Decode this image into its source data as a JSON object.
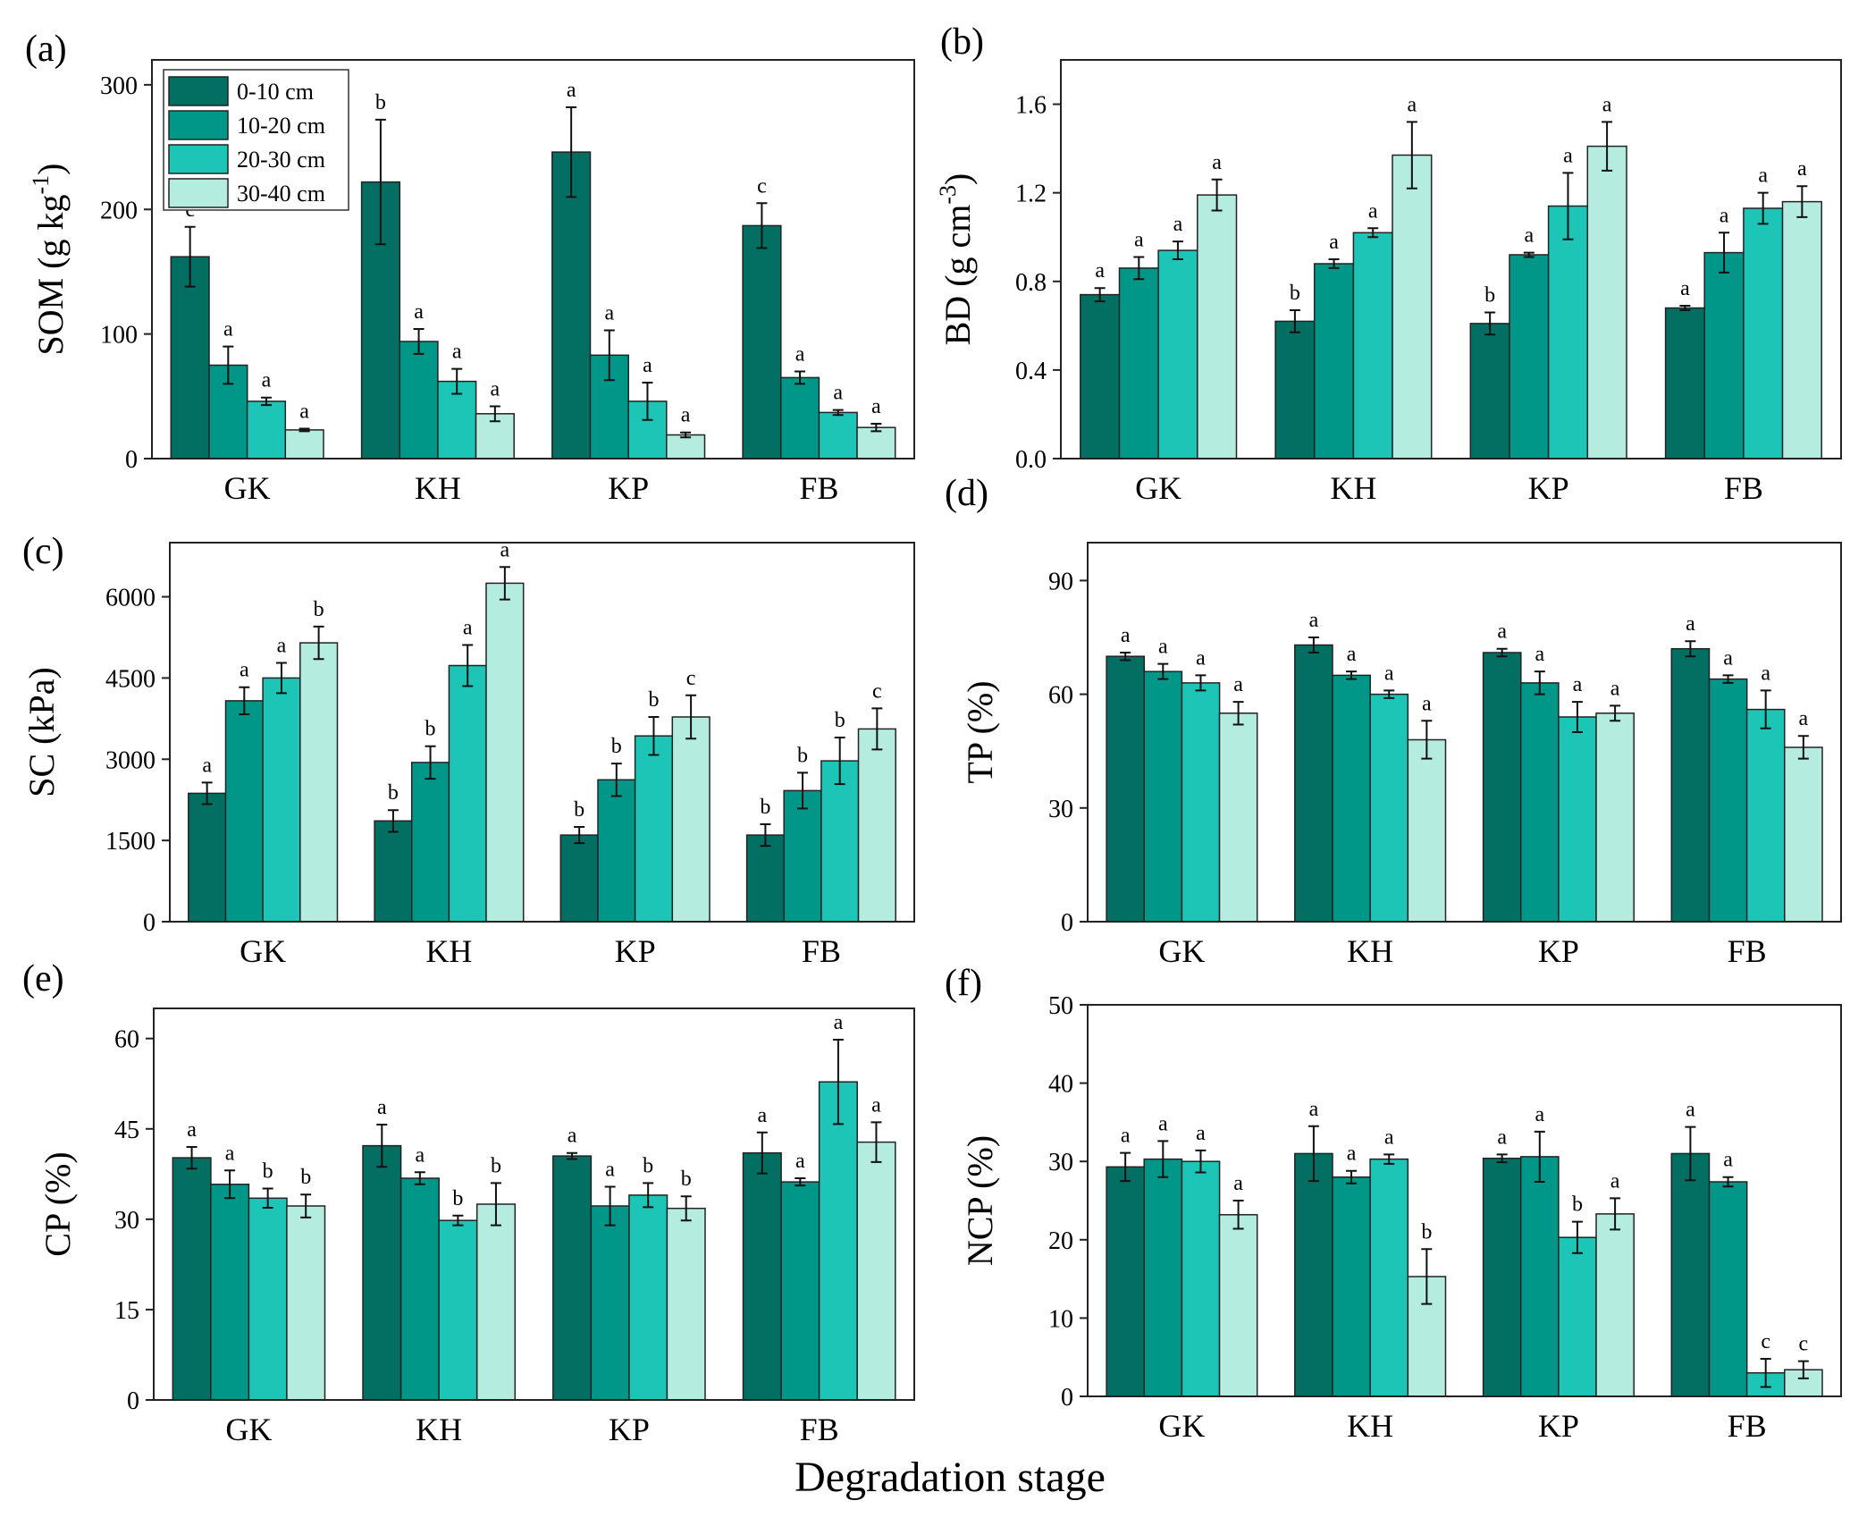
{
  "figure": {
    "x_title": "Degradation stage",
    "categories": [
      "GK",
      "KH",
      "KP",
      "FB"
    ],
    "series_names": [
      "0-10 cm",
      "10-20 cm",
      "20-30 cm",
      "30-40 cm"
    ],
    "series_colors": [
      "#026f62",
      "#009688",
      "#1dc5b6",
      "#b4ede0"
    ]
  },
  "chart_data": [
    {
      "type": "bar",
      "panel_label": "(a)",
      "ylabel_base": "SOM (g kg",
      "ylabel_sup": "-1",
      "ylabel_close": ")",
      "ylim": [
        0,
        320
      ],
      "yticks": [
        0,
        100,
        200,
        300
      ],
      "legend": "top-left",
      "categories": [
        "GK",
        "KH",
        "KP",
        "FB"
      ],
      "series": [
        {
          "name": "0-10 cm",
          "values": [
            162,
            222,
            246,
            187
          ],
          "errors": [
            24,
            50,
            36,
            18
          ],
          "letters": [
            "c",
            "b",
            "a",
            "c"
          ]
        },
        {
          "name": "10-20 cm",
          "values": [
            75,
            94,
            83,
            65
          ],
          "errors": [
            15,
            10,
            20,
            5
          ],
          "letters": [
            "a",
            "a",
            "a",
            "a"
          ]
        },
        {
          "name": "20-30 cm",
          "values": [
            46,
            62,
            46,
            37
          ],
          "errors": [
            3,
            10,
            15,
            2
          ],
          "letters": [
            "a",
            "a",
            "a",
            "a"
          ]
        },
        {
          "name": "30-40 cm",
          "values": [
            23,
            36,
            19,
            25
          ],
          "errors": [
            1,
            6,
            2,
            3
          ],
          "letters": [
            "a",
            "a",
            "a",
            "a"
          ]
        }
      ]
    },
    {
      "type": "bar",
      "panel_label": "(b)",
      "ylabel_base": "BD (g cm",
      "ylabel_sup": "-3",
      "ylabel_close": ")",
      "ylim": [
        0,
        1.8
      ],
      "yticks": [
        0.0,
        0.4,
        0.8,
        1.2,
        1.6
      ],
      "tick_decimals": 1,
      "categories": [
        "GK",
        "KH",
        "KP",
        "FB"
      ],
      "series": [
        {
          "name": "0-10 cm",
          "values": [
            0.74,
            0.62,
            0.61,
            0.68
          ],
          "errors": [
            0.03,
            0.05,
            0.05,
            0.01
          ],
          "letters": [
            "a",
            "b",
            "b",
            "a"
          ]
        },
        {
          "name": "10-20 cm",
          "values": [
            0.86,
            0.88,
            0.92,
            0.93
          ],
          "errors": [
            0.05,
            0.02,
            0.01,
            0.09
          ],
          "letters": [
            "a",
            "a",
            "a",
            "a"
          ]
        },
        {
          "name": "20-30 cm",
          "values": [
            0.94,
            1.02,
            1.14,
            1.13
          ],
          "errors": [
            0.04,
            0.02,
            0.15,
            0.07
          ],
          "letters": [
            "a",
            "a",
            "a",
            "a"
          ]
        },
        {
          "name": "30-40 cm",
          "values": [
            1.19,
            1.37,
            1.41,
            1.16
          ],
          "errors": [
            0.07,
            0.15,
            0.11,
            0.07
          ],
          "letters": [
            "a",
            "a",
            "a",
            "a"
          ]
        }
      ]
    },
    {
      "type": "bar",
      "panel_label": "(c)",
      "ylabel_base": "SC (kPa)",
      "ylim": [
        0,
        7000
      ],
      "yticks": [
        0,
        1500,
        3000,
        4500,
        6000
      ],
      "categories": [
        "GK",
        "KH",
        "KP",
        "FB"
      ],
      "series": [
        {
          "name": "0-10 cm",
          "values": [
            2370,
            1860,
            1600,
            1600
          ],
          "errors": [
            200,
            200,
            150,
            200
          ],
          "letters": [
            "a",
            "b",
            "b",
            "b"
          ]
        },
        {
          "name": "10-20 cm",
          "values": [
            4080,
            2940,
            2620,
            2420
          ],
          "errors": [
            250,
            300,
            300,
            330
          ],
          "letters": [
            "a",
            "b",
            "b",
            "b"
          ]
        },
        {
          "name": "20-30 cm",
          "values": [
            4500,
            4730,
            3430,
            2970
          ],
          "errors": [
            280,
            380,
            350,
            430
          ],
          "letters": [
            "a",
            "a",
            "b",
            "b"
          ]
        },
        {
          "name": "30-40 cm",
          "values": [
            5150,
            6250,
            3780,
            3560
          ],
          "errors": [
            300,
            300,
            400,
            380
          ],
          "letters": [
            "b",
            "a",
            "c",
            "c"
          ]
        }
      ]
    },
    {
      "type": "bar",
      "panel_label": "(d)",
      "ylabel_base": "TP (%)",
      "ylim": [
        0,
        100
      ],
      "yticks": [
        0,
        30,
        60,
        90
      ],
      "categories": [
        "GK",
        "KH",
        "KP",
        "FB"
      ],
      "series": [
        {
          "name": "0-10 cm",
          "values": [
            70,
            73,
            71,
            72
          ],
          "errors": [
            1,
            2,
            1,
            2
          ],
          "letters": [
            "a",
            "a",
            "a",
            "a"
          ]
        },
        {
          "name": "10-20 cm",
          "values": [
            66,
            65,
            63,
            64
          ],
          "errors": [
            2,
            1,
            3,
            1
          ],
          "letters": [
            "a",
            "a",
            "a",
            "a"
          ]
        },
        {
          "name": "20-30 cm",
          "values": [
            63,
            60,
            54,
            56
          ],
          "errors": [
            2,
            1,
            4,
            5
          ],
          "letters": [
            "a",
            "a",
            "a",
            "a"
          ]
        },
        {
          "name": "30-40 cm",
          "values": [
            55,
            48,
            55,
            46
          ],
          "errors": [
            3,
            5,
            2,
            3
          ],
          "letters": [
            "a",
            "a",
            "a",
            "a"
          ]
        }
      ]
    },
    {
      "type": "bar",
      "panel_label": "(e)",
      "ylabel_base": "CP (%)",
      "ylim": [
        0,
        65
      ],
      "yticks": [
        0,
        15,
        30,
        45,
        60
      ],
      "categories": [
        "GK",
        "KH",
        "KP",
        "FB"
      ],
      "series": [
        {
          "name": "0-10 cm",
          "values": [
            40.2,
            42.2,
            40.5,
            41.0
          ],
          "errors": [
            1.8,
            3.5,
            0.5,
            3.4
          ],
          "letters": [
            "a",
            "a",
            "a",
            "a"
          ]
        },
        {
          "name": "10-20 cm",
          "values": [
            35.8,
            36.8,
            32.2,
            36.2
          ],
          "errors": [
            2.3,
            1.0,
            3.2,
            0.6
          ],
          "letters": [
            "a",
            "a",
            "a",
            "a"
          ]
        },
        {
          "name": "20-30 cm",
          "values": [
            33.5,
            29.8,
            34.0,
            52.8
          ],
          "errors": [
            1.6,
            0.8,
            2.0,
            7.0
          ],
          "letters": [
            "b",
            "b",
            "b",
            "a"
          ]
        },
        {
          "name": "30-40 cm",
          "values": [
            32.2,
            32.5,
            31.8,
            42.8
          ],
          "errors": [
            1.9,
            3.5,
            2.0,
            3.3
          ],
          "letters": [
            "b",
            "b",
            "b",
            "a"
          ]
        }
      ]
    },
    {
      "type": "bar",
      "panel_label": "(f)",
      "ylabel_base": "NCP (%)",
      "ylim": [
        0,
        50
      ],
      "yticks": [
        0,
        10,
        20,
        30,
        40,
        50
      ],
      "categories": [
        "GK",
        "KH",
        "KP",
        "FB"
      ],
      "series": [
        {
          "name": "0-10 cm",
          "values": [
            29.3,
            31.0,
            30.4,
            31.0
          ],
          "errors": [
            1.8,
            3.5,
            0.5,
            3.4
          ],
          "letters": [
            "a",
            "a",
            "a",
            "a"
          ]
        },
        {
          "name": "10-20 cm",
          "values": [
            30.3,
            28.0,
            30.6,
            27.4
          ],
          "errors": [
            2.3,
            0.8,
            3.2,
            0.6
          ],
          "letters": [
            "a",
            "a",
            "a",
            "a"
          ]
        },
        {
          "name": "20-30 cm",
          "values": [
            30.0,
            30.3,
            20.3,
            3.0
          ],
          "errors": [
            1.4,
            0.6,
            2.0,
            1.8
          ],
          "letters": [
            "a",
            "a",
            "b",
            "c"
          ]
        },
        {
          "name": "30-40 cm",
          "values": [
            23.2,
            15.3,
            23.3,
            3.4
          ],
          "errors": [
            1.8,
            3.5,
            2.0,
            1.1
          ],
          "letters": [
            "a",
            "b",
            "a",
            "c"
          ]
        }
      ]
    }
  ]
}
